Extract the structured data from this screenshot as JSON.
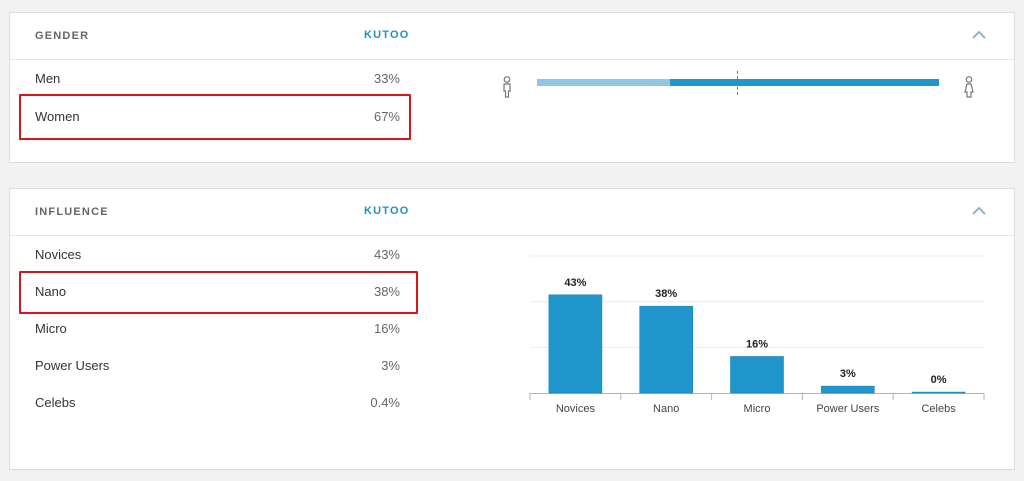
{
  "gender": {
    "title": "GENDER",
    "brand": "KUTOO",
    "rows": [
      {
        "label": "Men",
        "value": "33%"
      },
      {
        "label": "Women",
        "value": "67%"
      }
    ],
    "men_share": 0.33,
    "icons": [
      "male-icon",
      "female-icon"
    ]
  },
  "influence": {
    "title": "INFLUENCE",
    "brand": "KUTOO",
    "rows": [
      {
        "label": "Novices",
        "value": "43%"
      },
      {
        "label": "Nano",
        "value": "38%"
      },
      {
        "label": "Micro",
        "value": "16%"
      },
      {
        "label": "Power Users",
        "value": "3%"
      },
      {
        "label": "Celebs",
        "value": "0.4%"
      }
    ]
  },
  "colors": {
    "accent": "#1f8fc7",
    "bar": "#2196cc",
    "men_bar": "#8ec7e1",
    "highlight": "#d9141c"
  },
  "chart_data": {
    "type": "bar",
    "categories": [
      "Novices",
      "Nano",
      "Micro",
      "Power Users",
      "Celebs"
    ],
    "values": [
      43,
      38,
      16,
      3,
      0.4
    ],
    "data_labels": [
      "43%",
      "38%",
      "16%",
      "3%",
      "0%"
    ],
    "ylim": [
      0,
      60
    ],
    "grid": true
  }
}
